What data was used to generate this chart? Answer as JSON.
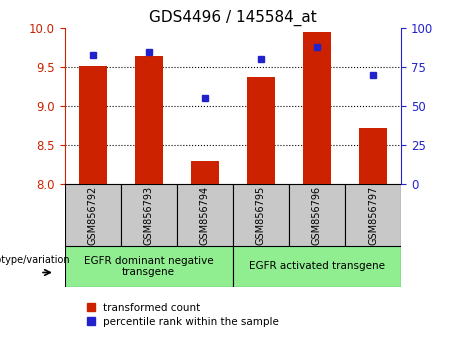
{
  "title": "GDS4496 / 145584_at",
  "samples": [
    "GSM856792",
    "GSM856793",
    "GSM856794",
    "GSM856795",
    "GSM856796",
    "GSM856797"
  ],
  "red_values": [
    9.51,
    9.65,
    8.3,
    9.37,
    9.95,
    8.72
  ],
  "blue_values": [
    83,
    85,
    55,
    80,
    88,
    70
  ],
  "ylim_left": [
    8,
    10
  ],
  "ylim_right": [
    0,
    100
  ],
  "yticks_left": [
    8,
    8.5,
    9,
    9.5,
    10
  ],
  "yticks_right": [
    0,
    25,
    50,
    75,
    100
  ],
  "red_color": "#CC2200",
  "blue_color": "#2222CC",
  "bar_width": 0.5,
  "group1_label": "EGFR dominant negative\ntransgene",
  "group2_label": "EGFR activated transgene",
  "group_color": "#90EE90",
  "xlabel_genotype": "genotype/variation",
  "legend_red": "transformed count",
  "legend_blue": "percentile rank within the sample",
  "grid_color": "black",
  "tick_box_color": "#C8C8C8",
  "plot_bg": "white"
}
